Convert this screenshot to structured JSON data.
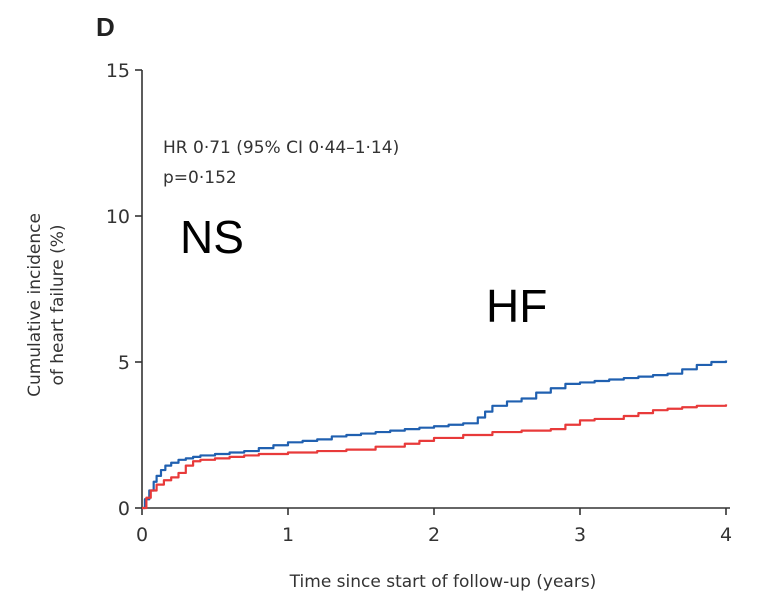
{
  "panel_label": "D",
  "chart_data": {
    "type": "line",
    "xlabel": "Time since start of follow-up (years)",
    "ylabel_line1": "Cumulative incidence",
    "ylabel_line2": "of heart failure (%)",
    "xlim": [
      0,
      4
    ],
    "ylim": [
      0,
      15
    ],
    "xticks": [
      0,
      1,
      2,
      3,
      4
    ],
    "yticks": [
      0,
      5,
      10,
      15
    ],
    "grid": false,
    "annotation_line1": "HR 0·71 (95% CI 0·44–1·14)",
    "annotation_line2": "p=0·152",
    "overlay_label_1": "NS",
    "overlay_label_2": "HF",
    "series": [
      {
        "color": "#2060b0",
        "points": [
          [
            0,
            0
          ],
          [
            0.02,
            0.3
          ],
          [
            0.05,
            0.6
          ],
          [
            0.08,
            0.9
          ],
          [
            0.1,
            1.1
          ],
          [
            0.13,
            1.3
          ],
          [
            0.16,
            1.45
          ],
          [
            0.2,
            1.55
          ],
          [
            0.25,
            1.65
          ],
          [
            0.3,
            1.7
          ],
          [
            0.35,
            1.75
          ],
          [
            0.4,
            1.8
          ],
          [
            0.5,
            1.85
          ],
          [
            0.6,
            1.9
          ],
          [
            0.7,
            1.95
          ],
          [
            0.8,
            2.05
          ],
          [
            0.9,
            2.15
          ],
          [
            1.0,
            2.25
          ],
          [
            1.1,
            2.3
          ],
          [
            1.2,
            2.35
          ],
          [
            1.3,
            2.45
          ],
          [
            1.4,
            2.5
          ],
          [
            1.5,
            2.55
          ],
          [
            1.6,
            2.6
          ],
          [
            1.7,
            2.65
          ],
          [
            1.8,
            2.7
          ],
          [
            1.9,
            2.75
          ],
          [
            2.0,
            2.8
          ],
          [
            2.1,
            2.85
          ],
          [
            2.2,
            2.9
          ],
          [
            2.3,
            3.1
          ],
          [
            2.35,
            3.3
          ],
          [
            2.4,
            3.5
          ],
          [
            2.5,
            3.65
          ],
          [
            2.6,
            3.75
          ],
          [
            2.7,
            3.95
          ],
          [
            2.8,
            4.1
          ],
          [
            2.9,
            4.25
          ],
          [
            3.0,
            4.3
          ],
          [
            3.1,
            4.35
          ],
          [
            3.2,
            4.4
          ],
          [
            3.3,
            4.45
          ],
          [
            3.4,
            4.5
          ],
          [
            3.5,
            4.55
          ],
          [
            3.6,
            4.6
          ],
          [
            3.7,
            4.75
          ],
          [
            3.8,
            4.9
          ],
          [
            3.9,
            5.0
          ],
          [
            4.0,
            5.05
          ]
        ]
      },
      {
        "color": "#e83a3a",
        "points": [
          [
            0,
            0
          ],
          [
            0.03,
            0.35
          ],
          [
            0.06,
            0.6
          ],
          [
            0.1,
            0.8
          ],
          [
            0.15,
            0.95
          ],
          [
            0.2,
            1.05
          ],
          [
            0.25,
            1.2
          ],
          [
            0.3,
            1.45
          ],
          [
            0.35,
            1.6
          ],
          [
            0.4,
            1.65
          ],
          [
            0.5,
            1.7
          ],
          [
            0.6,
            1.75
          ],
          [
            0.7,
            1.8
          ],
          [
            0.8,
            1.85
          ],
          [
            1.0,
            1.9
          ],
          [
            1.2,
            1.95
          ],
          [
            1.4,
            2.0
          ],
          [
            1.6,
            2.1
          ],
          [
            1.8,
            2.2
          ],
          [
            1.9,
            2.3
          ],
          [
            2.0,
            2.4
          ],
          [
            2.2,
            2.5
          ],
          [
            2.4,
            2.6
          ],
          [
            2.6,
            2.65
          ],
          [
            2.8,
            2.7
          ],
          [
            2.9,
            2.85
          ],
          [
            3.0,
            3.0
          ],
          [
            3.1,
            3.05
          ],
          [
            3.3,
            3.15
          ],
          [
            3.4,
            3.25
          ],
          [
            3.5,
            3.35
          ],
          [
            3.6,
            3.4
          ],
          [
            3.7,
            3.45
          ],
          [
            3.8,
            3.5
          ],
          [
            4.0,
            3.55
          ]
        ]
      }
    ]
  }
}
